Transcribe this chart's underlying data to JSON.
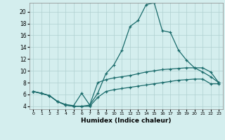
{
  "xlabel": "Humidex (Indice chaleur)",
  "xlim": [
    -0.5,
    23.5
  ],
  "ylim": [
    3.5,
    21.5
  ],
  "xticks": [
    0,
    1,
    2,
    3,
    4,
    5,
    6,
    7,
    8,
    9,
    10,
    11,
    12,
    13,
    14,
    15,
    16,
    17,
    18,
    19,
    20,
    21,
    22,
    23
  ],
  "yticks": [
    4,
    6,
    8,
    10,
    12,
    14,
    16,
    18,
    20
  ],
  "bg_color": "#d4eeee",
  "grid_color": "#b0d0d0",
  "line_color": "#1a6b6b",
  "line1_x": [
    0,
    1,
    2,
    3,
    4,
    5,
    6,
    7,
    8,
    9,
    10,
    11,
    12,
    13,
    14,
    15,
    16,
    17,
    18,
    19,
    20,
    21,
    22,
    23
  ],
  "line1_y": [
    6.5,
    6.2,
    5.8,
    4.8,
    4.2,
    4.0,
    4.0,
    4.2,
    6.2,
    9.5,
    11.0,
    13.5,
    17.5,
    18.5,
    21.2,
    21.5,
    16.8,
    16.5,
    13.5,
    11.8,
    10.5,
    9.8,
    9.0,
    8.0
  ],
  "line2_x": [
    0,
    2,
    3,
    4,
    5,
    6,
    7,
    8,
    9,
    10,
    11,
    12,
    13,
    14,
    15,
    16,
    17,
    18,
    19,
    20,
    21,
    22,
    23
  ],
  "line2_y": [
    6.5,
    5.8,
    4.8,
    4.3,
    4.1,
    6.2,
    4.2,
    8.0,
    8.5,
    8.8,
    9.0,
    9.2,
    9.5,
    9.8,
    10.0,
    10.2,
    10.3,
    10.4,
    10.5,
    10.5,
    10.5,
    9.8,
    8.0
  ],
  "line3_x": [
    0,
    1,
    2,
    3,
    4,
    5,
    6,
    7,
    8,
    9,
    10,
    11,
    12,
    13,
    14,
    15,
    16,
    17,
    18,
    19,
    20,
    21,
    22,
    23
  ],
  "line3_y": [
    6.5,
    6.2,
    5.8,
    4.8,
    4.2,
    4.0,
    4.0,
    4.0,
    5.5,
    6.5,
    6.8,
    7.0,
    7.2,
    7.4,
    7.6,
    7.8,
    8.0,
    8.2,
    8.4,
    8.5,
    8.6,
    8.6,
    7.8,
    7.8
  ]
}
